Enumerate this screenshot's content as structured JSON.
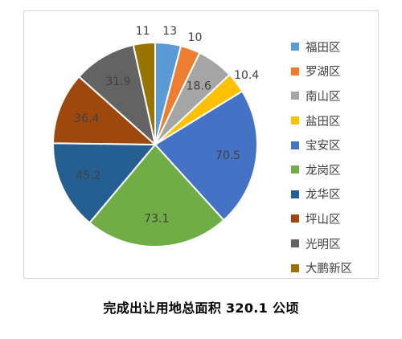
{
  "chart_data": {
    "type": "pie",
    "categories": [
      "福田区",
      "罗湖区",
      "南山区",
      "盐田区",
      "宝安区",
      "龙岗区",
      "龙华区",
      "坪山区",
      "光明区",
      "大鹏新区"
    ],
    "values": [
      13,
      10,
      18.6,
      10.4,
      70.5,
      73.1,
      45.2,
      36.4,
      31.9,
      11
    ],
    "data_labels": [
      "13",
      "10",
      "18.6",
      "10.4",
      "70.5",
      "73.1",
      "45.2",
      "36.4",
      "31.9",
      "11"
    ],
    "colors": [
      "#5B9BD5",
      "#ED7D31",
      "#A5A5A5",
      "#FFC000",
      "#4472C4",
      "#70AD47",
      "#255E91",
      "#9E480E",
      "#636363",
      "#997300"
    ],
    "legend_position": "right",
    "start_angle_deg": 0,
    "direction": "clockwise",
    "caption": "完成出让用地总面积 320.1 公顷"
  }
}
